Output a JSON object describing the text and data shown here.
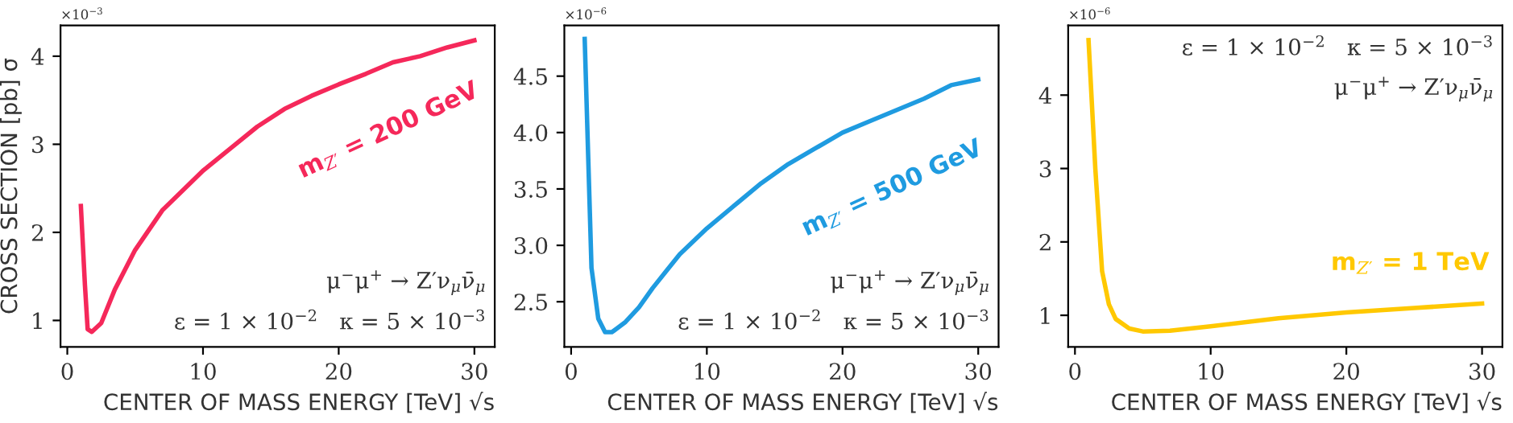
{
  "chart_data": [
    {
      "type": "line",
      "xlabel": "CENTER OF MASS ENERGY [TeV] √s",
      "ylabel": "CROSS SECTION [pb] σ",
      "xlim": [
        -0.5,
        31.5
      ],
      "xticks": [
        0,
        10,
        20,
        30
      ],
      "ylim": [
        0.7,
        4.35
      ],
      "yticks": [
        1,
        2,
        3,
        4
      ],
      "grid": false,
      "legend": false,
      "x": [
        1,
        1.3,
        1.5,
        1.8,
        2.5,
        3.5,
        5,
        7,
        10,
        12,
        14,
        16,
        18,
        20,
        22,
        24,
        26,
        28,
        30
      ],
      "series": [
        {
          "name": "m$_{Z′}$ = 200 GeV",
          "color": "#f5285a",
          "values": [
            2.3,
            1.4,
            0.9,
            0.87,
            0.97,
            1.35,
            1.8,
            2.25,
            2.7,
            2.95,
            3.2,
            3.4,
            3.55,
            3.68,
            3.8,
            3.93,
            4.0,
            4.1,
            4.18
          ]
        }
      ],
      "annotations": [
        "×10$^{−3}$",
        "μ$^{−}$μ$^{+}$ → Z′ν$_{μ}$ν̄$_{μ}$",
        "ε = 1 × 10$^{−2}$   κ = 5 × 10$^{−3}$"
      ]
    },
    {
      "type": "line",
      "xlabel": "CENTER OF MASS ENERGY [TeV] √s",
      "xlim": [
        -0.5,
        31.5
      ],
      "xticks": [
        0,
        10,
        20,
        30
      ],
      "ylim": [
        2.1,
        4.95
      ],
      "yticks": [
        {
          "value": 2.5,
          "label": "2.5"
        },
        {
          "value": 3,
          "label": "3.0"
        },
        {
          "value": 3.5,
          "label": "3.5"
        },
        {
          "value": 4,
          "label": "4.0"
        },
        {
          "value": 4.5,
          "label": "4.5"
        }
      ],
      "grid": false,
      "legend": false,
      "x": [
        1,
        1.5,
        2,
        2.5,
        3,
        4,
        5,
        6,
        7,
        8,
        10,
        12,
        14,
        16,
        18,
        20,
        22,
        24,
        26,
        28,
        30
      ],
      "series": [
        {
          "name": "m$_{Z′}$ = 500 GeV",
          "color": "#1f9be0",
          "values": [
            4.83,
            2.8,
            2.35,
            2.23,
            2.23,
            2.32,
            2.45,
            2.62,
            2.77,
            2.92,
            3.15,
            3.35,
            3.55,
            3.72,
            3.86,
            4.0,
            4.1,
            4.2,
            4.3,
            4.42,
            4.47
          ]
        }
      ],
      "annotations": [
        "×10$^{−6}$",
        "μ$^{−}$μ$^{+}$ → Z′ν$_{μ}$ν̄$_{μ}$",
        "ε = 1 × 10$^{−2}$   κ = 5 × 10$^{−3}$"
      ]
    },
    {
      "type": "line",
      "xlabel": "CENTER OF MASS ENERGY [TeV] √s",
      "xlim": [
        -0.5,
        31.5
      ],
      "xticks": [
        0,
        10,
        20,
        30
      ],
      "ylim": [
        0.57,
        4.95
      ],
      "yticks": [
        1,
        2,
        3,
        4
      ],
      "grid": false,
      "legend": false,
      "x": [
        1,
        1.5,
        2,
        2.5,
        3,
        4,
        5,
        7,
        10,
        15,
        20,
        25,
        30
      ],
      "series": [
        {
          "name": "m$_{Z′}$ = 1 TeV",
          "color": "#ffc800",
          "values": [
            4.75,
            3.0,
            1.6,
            1.15,
            0.95,
            0.82,
            0.78,
            0.79,
            0.85,
            0.96,
            1.04,
            1.1,
            1.16
          ]
        }
      ],
      "annotations": [
        "×10$^{−6}$",
        "ε = 1 × 10$^{−2}$   κ = 5 × 10$^{−3}$",
        "μ$^{−}$μ$^{+}$ → Z′ν$_{μ}$ν̄$_{μ}$"
      ]
    }
  ]
}
